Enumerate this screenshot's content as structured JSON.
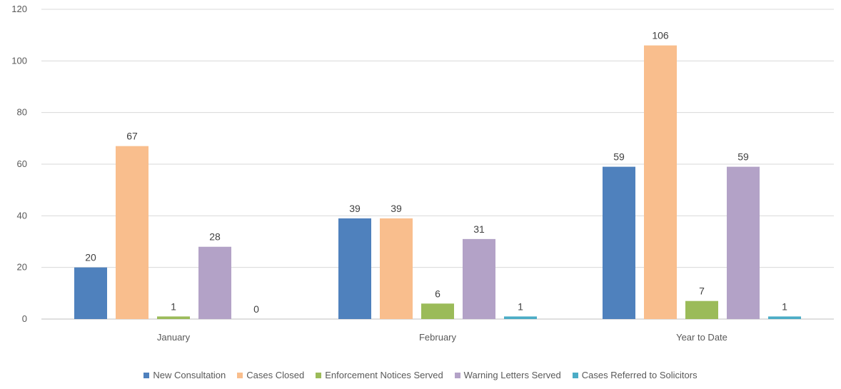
{
  "chart_data": {
    "type": "bar",
    "categories": [
      "January",
      "February",
      "Year to Date"
    ],
    "ylim": [
      0,
      120
    ],
    "yticks": [
      0,
      20,
      40,
      60,
      80,
      100,
      120
    ],
    "gridlines": true,
    "legend_position": "bottom",
    "series": [
      {
        "name": "New Consultation",
        "color": "#4f81bd",
        "values": [
          20,
          39,
          59
        ]
      },
      {
        "name": "Cases Closed",
        "color": "#f9be8d",
        "values": [
          67,
          39,
          106
        ]
      },
      {
        "name": "Enforcement Notices Served",
        "color": "#9bbb59",
        "values": [
          1,
          6,
          7
        ]
      },
      {
        "name": "Warning Letters Served",
        "color": "#b3a2c7",
        "values": [
          28,
          31,
          59
        ]
      },
      {
        "name": "Cases Referred to Solicitors",
        "color": "#4bacc6",
        "values": [
          0,
          1,
          1
        ]
      }
    ]
  }
}
